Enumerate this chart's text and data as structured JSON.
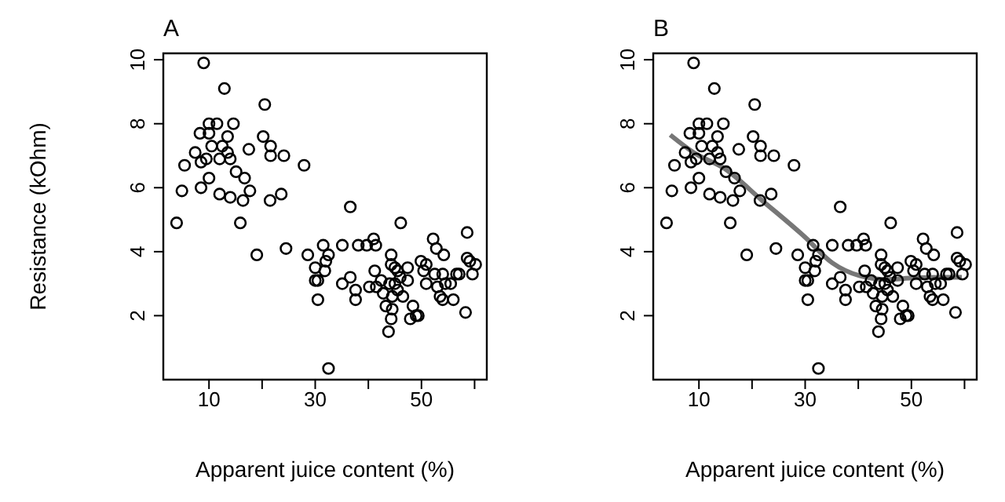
{
  "chart_data": [
    {
      "type": "scatter",
      "title": "A",
      "xlabel": "Apparent juice content (%)",
      "ylabel": "Resistance (kOhm)",
      "xlim": [
        1.4,
        62.3
      ],
      "ylim": [
        0,
        10.2
      ],
      "xticks": [
        10,
        {
          "value": 20,
          "label": null
        },
        30,
        {
          "value": 40,
          "label": null
        },
        50,
        {
          "value": 60,
          "label": null
        }
      ],
      "yticks": [
        2,
        4,
        6,
        8,
        10
      ],
      "marker": "circle",
      "series": [
        {
          "color": "#000000",
          "x": [
            9.0,
            12.9,
            20.5,
            10.0,
            11.5,
            8.3,
            10.0,
            14.6,
            5.4,
            4.9,
            3.9,
            7.4,
            8.5,
            9.5,
            10.5,
            12.0,
            13.5,
            12.5,
            13.5,
            14.0,
            10.0,
            8.5,
            12.0,
            14.0,
            15.1,
            16.7,
            17.7,
            16.4,
            15.9,
            17.5,
            20.2,
            21.6,
            21.6,
            24.1,
            21.5,
            23.6,
            27.9,
            19.0,
            24.5,
            28.6,
            31.5,
            32.5,
            32.0,
            30.0,
            30.5,
            30.0,
            31.8,
            30.5,
            32.5,
            36.6,
            35.1,
            35.1,
            36.6,
            37.6,
            37.6,
            38.1,
            39.7,
            40.2,
            41.0,
            41.4,
            41.2,
            42.4,
            42.8,
            43.3,
            44.3,
            43.8,
            44.3,
            44.3,
            45.0,
            45.5,
            46.0,
            45.0,
            44.0,
            45.5,
            46.5,
            44.5,
            46.1,
            47.4,
            47.4,
            48.4,
            47.9,
            49.0,
            49.4,
            49.9,
            50.4,
            50.9,
            50.9,
            52.2,
            52.8,
            54.2,
            52.5,
            54.0,
            53.0,
            53.5,
            54.0,
            56.0,
            54.5,
            55.5,
            56.6,
            58.6,
            58.3,
            58.6,
            59.1,
            60.2,
            59.6,
            57.1,
            41.5,
            44.5
          ],
          "values": [
            9.9,
            9.1,
            8.6,
            8.0,
            8.0,
            7.7,
            7.7,
            8.0,
            6.7,
            5.9,
            4.9,
            7.1,
            6.8,
            6.9,
            7.3,
            6.9,
            7.1,
            7.3,
            7.6,
            6.9,
            6.3,
            6.0,
            5.8,
            5.7,
            6.5,
            6.3,
            5.9,
            5.6,
            4.9,
            7.2,
            7.6,
            7.3,
            7.0,
            7.0,
            5.6,
            5.8,
            6.7,
            3.9,
            4.1,
            3.9,
            4.2,
            3.9,
            3.7,
            3.5,
            3.1,
            3.1,
            3.4,
            2.5,
            0.35,
            5.4,
            4.2,
            3.0,
            3.2,
            2.8,
            2.5,
            4.2,
            4.2,
            2.9,
            4.4,
            4.2,
            3.4,
            3.1,
            2.7,
            2.3,
            1.9,
            1.5,
            3.9,
            3.6,
            3.5,
            3.4,
            3.2,
            3.0,
            3.0,
            2.8,
            2.6,
            2.6,
            4.9,
            3.5,
            3.1,
            2.3,
            1.9,
            2.0,
            2.0,
            3.7,
            3.4,
            3.0,
            3.6,
            4.4,
            4.1,
            3.9,
            3.3,
            3.3,
            2.9,
            2.6,
            2.5,
            2.5,
            3.0,
            3.0,
            3.3,
            4.6,
            2.1,
            3.8,
            3.7,
            3.6,
            3.3,
            3.3,
            2.9,
            2.2
          ]
        }
      ]
    },
    {
      "type": "scatter",
      "title": "B",
      "xlabel": "Apparent juice content (%)",
      "xlim": [
        1.4,
        62.3
      ],
      "ylim": [
        0,
        10.2
      ],
      "xticks": [
        10,
        {
          "value": 20,
          "label": null
        },
        30,
        {
          "value": 40,
          "label": null
        },
        50,
        {
          "value": 60,
          "label": null
        }
      ],
      "yticks": [
        2,
        4,
        6,
        8,
        10
      ],
      "marker": "circle",
      "series": [
        {
          "color": "#000000",
          "x": [
            9.0,
            12.9,
            20.5,
            10.0,
            11.5,
            8.3,
            10.0,
            14.6,
            5.4,
            4.9,
            3.9,
            7.4,
            8.5,
            9.5,
            10.5,
            12.0,
            13.5,
            12.5,
            13.5,
            14.0,
            10.0,
            8.5,
            12.0,
            14.0,
            15.1,
            16.7,
            17.7,
            16.4,
            15.9,
            17.5,
            20.2,
            21.6,
            21.6,
            24.1,
            21.5,
            23.6,
            27.9,
            19.0,
            24.5,
            28.6,
            31.5,
            32.5,
            32.0,
            30.0,
            30.5,
            30.0,
            31.8,
            30.5,
            32.5,
            36.6,
            35.1,
            35.1,
            36.6,
            37.6,
            37.6,
            38.1,
            39.7,
            40.2,
            41.0,
            41.4,
            41.2,
            42.4,
            42.8,
            43.3,
            44.3,
            43.8,
            44.3,
            44.3,
            45.0,
            45.5,
            46.0,
            45.0,
            44.0,
            45.5,
            46.5,
            44.5,
            46.1,
            47.4,
            47.4,
            48.4,
            47.9,
            49.0,
            49.4,
            49.9,
            50.4,
            50.9,
            50.9,
            52.2,
            52.8,
            54.2,
            52.5,
            54.0,
            53.0,
            53.5,
            54.0,
            56.0,
            54.5,
            55.5,
            56.6,
            58.6,
            58.3,
            58.6,
            59.1,
            60.2,
            59.6,
            57.1,
            41.5,
            44.5
          ],
          "values": [
            9.9,
            9.1,
            8.6,
            8.0,
            8.0,
            7.7,
            7.7,
            8.0,
            6.7,
            5.9,
            4.9,
            7.1,
            6.8,
            6.9,
            7.3,
            6.9,
            7.1,
            7.3,
            7.6,
            6.9,
            6.3,
            6.0,
            5.8,
            5.7,
            6.5,
            6.3,
            5.9,
            5.6,
            4.9,
            7.2,
            7.6,
            7.3,
            7.0,
            7.0,
            5.6,
            5.8,
            6.7,
            3.9,
            4.1,
            3.9,
            4.2,
            3.9,
            3.7,
            3.5,
            3.1,
            3.1,
            3.4,
            2.5,
            0.35,
            5.4,
            4.2,
            3.0,
            3.2,
            2.8,
            2.5,
            4.2,
            4.2,
            2.9,
            4.4,
            4.2,
            3.4,
            3.1,
            2.7,
            2.3,
            1.9,
            1.5,
            3.9,
            3.6,
            3.5,
            3.4,
            3.2,
            3.0,
            3.0,
            2.8,
            2.6,
            2.6,
            4.9,
            3.5,
            3.1,
            2.3,
            1.9,
            2.0,
            2.0,
            3.7,
            3.4,
            3.0,
            3.6,
            4.4,
            4.1,
            3.9,
            3.3,
            3.3,
            2.9,
            2.6,
            2.5,
            2.5,
            3.0,
            3.0,
            3.3,
            4.6,
            2.1,
            3.8,
            3.7,
            3.6,
            3.3,
            3.3,
            2.9,
            2.2
          ]
        },
        {
          "type": "line",
          "color": "#777777",
          "line_style": "solid",
          "marker": "none",
          "x": [
            4.6,
            9.0,
            14.8,
            21.9,
            30.0,
            35.1,
            40.2,
            45.3,
            50.4,
            55.4,
            59.5
          ],
          "values": [
            7.65,
            7.1,
            6.6,
            5.6,
            4.45,
            3.65,
            3.25,
            3.13,
            3.18,
            3.2,
            3.2
          ]
        }
      ]
    }
  ]
}
